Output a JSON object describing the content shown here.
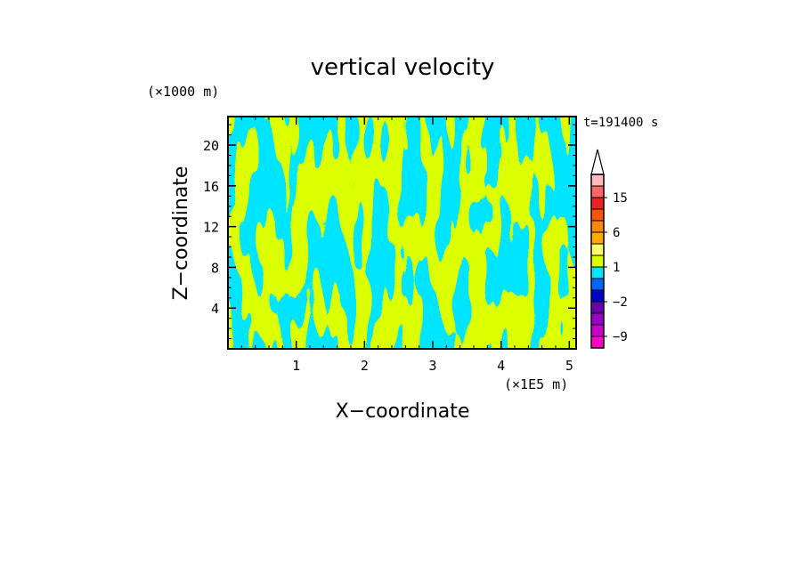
{
  "chart_data": {
    "type": "heatmap",
    "title": "vertical velocity",
    "xlabel": "X−coordinate",
    "ylabel": "Z−coordinate",
    "x_unit": "(×1E5 m)",
    "y_unit": "(×1000 m)",
    "time_label": "t=191400 s",
    "xlim": [
      0,
      5.1
    ],
    "ylim": [
      0,
      22.8
    ],
    "x_ticks": [
      1,
      2,
      3,
      4,
      5
    ],
    "y_ticks": [
      4,
      8,
      12,
      16,
      20
    ],
    "x_tick_labels": [
      "1",
      "2",
      "3",
      "4",
      "5"
    ],
    "y_tick_labels": [
      "4",
      "8",
      "12",
      "16",
      "20"
    ],
    "field_colors": {
      "positive": "#dcff00",
      "negative": "#00e5ff"
    },
    "colorbar": {
      "levels": [
        -12,
        -9,
        -6,
        -3,
        -2,
        -1,
        0,
        1,
        2,
        3,
        6,
        9,
        12,
        15,
        18,
        24
      ],
      "colors": [
        "#ff00cc",
        "#cc00cc",
        "#9900cc",
        "#6600aa",
        "#0000cc",
        "#0066ff",
        "#00e5ff",
        "#dcff00",
        "#ffff66",
        "#ffaa00",
        "#ff8800",
        "#ff5500",
        "#ee2222",
        "#ff6666",
        "#ffbbbb"
      ],
      "labels": [
        {
          "value": 15,
          "text": "15"
        },
        {
          "value": 6,
          "text": "6"
        },
        {
          "value": 1,
          "text": "1"
        },
        {
          "value": -2,
          "text": "−2"
        },
        {
          "value": -9,
          "text": "−9"
        }
      ]
    }
  }
}
